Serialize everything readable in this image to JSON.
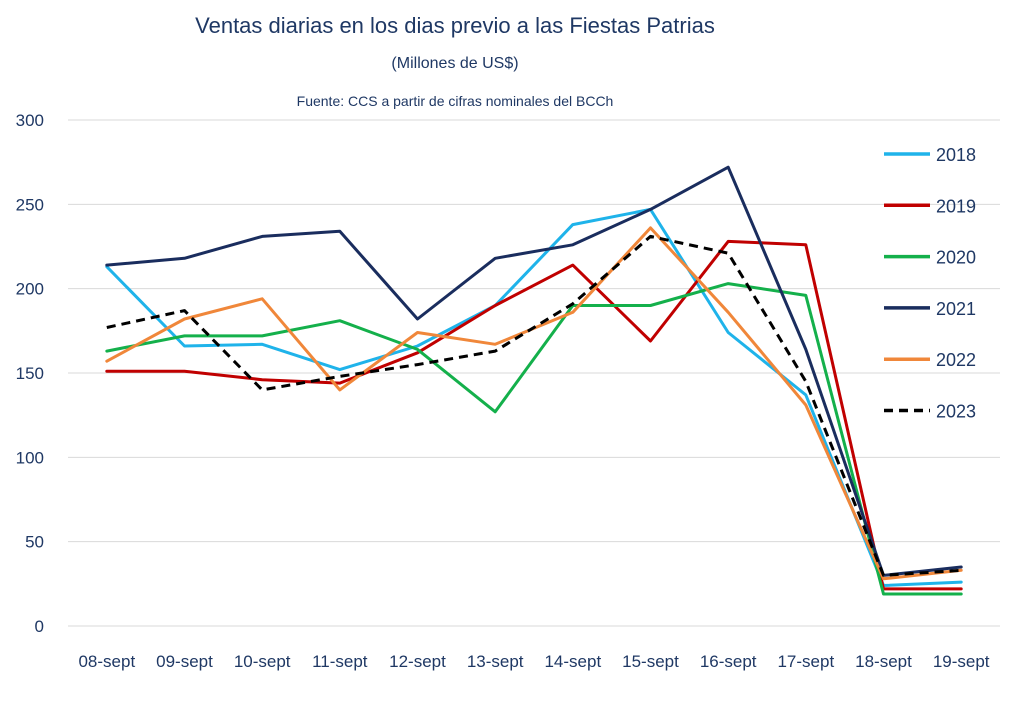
{
  "chart_data": {
    "type": "line",
    "title": "Ventas diarias en los dias previo a las Fiestas Patrias",
    "subtitle": "(Millones de US$)",
    "source": "Fuente: CCS a partir de cifras nominales del BCCh",
    "xlabel": "",
    "ylabel": "",
    "categories": [
      "08-sept",
      "09-sept",
      "10-sept",
      "11-sept",
      "12-sept",
      "13-sept",
      "14-sept",
      "15-sept",
      "16-sept",
      "17-sept",
      "18-sept",
      "19-sept"
    ],
    "ylim": [
      0,
      300
    ],
    "yticks": [
      0,
      50,
      100,
      150,
      200,
      250,
      300
    ],
    "grid": true,
    "legend_position": "right",
    "series": [
      {
        "name": "2018",
        "color": "#1fb3ea",
        "dash": false,
        "values": [
          213,
          166,
          167,
          152,
          166,
          190,
          238,
          247,
          174,
          137,
          24,
          26
        ]
      },
      {
        "name": "2019",
        "color": "#c00000",
        "dash": false,
        "values": [
          151,
          151,
          146,
          144,
          162,
          190,
          214,
          169,
          228,
          226,
          22,
          22
        ]
      },
      {
        "name": "2020",
        "color": "#14b04b",
        "dash": false,
        "values": [
          163,
          172,
          172,
          181,
          164,
          127,
          190,
          190,
          203,
          196,
          19,
          19
        ]
      },
      {
        "name": "2021",
        "color": "#1a2d5e",
        "dash": false,
        "values": [
          214,
          218,
          231,
          234,
          182,
          218,
          226,
          247,
          272,
          164,
          30,
          35
        ]
      },
      {
        "name": "2022",
        "color": "#f0873a",
        "dash": false,
        "values": [
          157,
          182,
          194,
          140,
          174,
          167,
          186,
          236,
          186,
          131,
          28,
          33
        ]
      },
      {
        "name": "2023",
        "color": "#000000",
        "dash": true,
        "values": [
          177,
          187,
          140,
          148,
          155,
          163,
          191,
          231,
          221,
          145,
          30,
          33
        ]
      }
    ]
  }
}
